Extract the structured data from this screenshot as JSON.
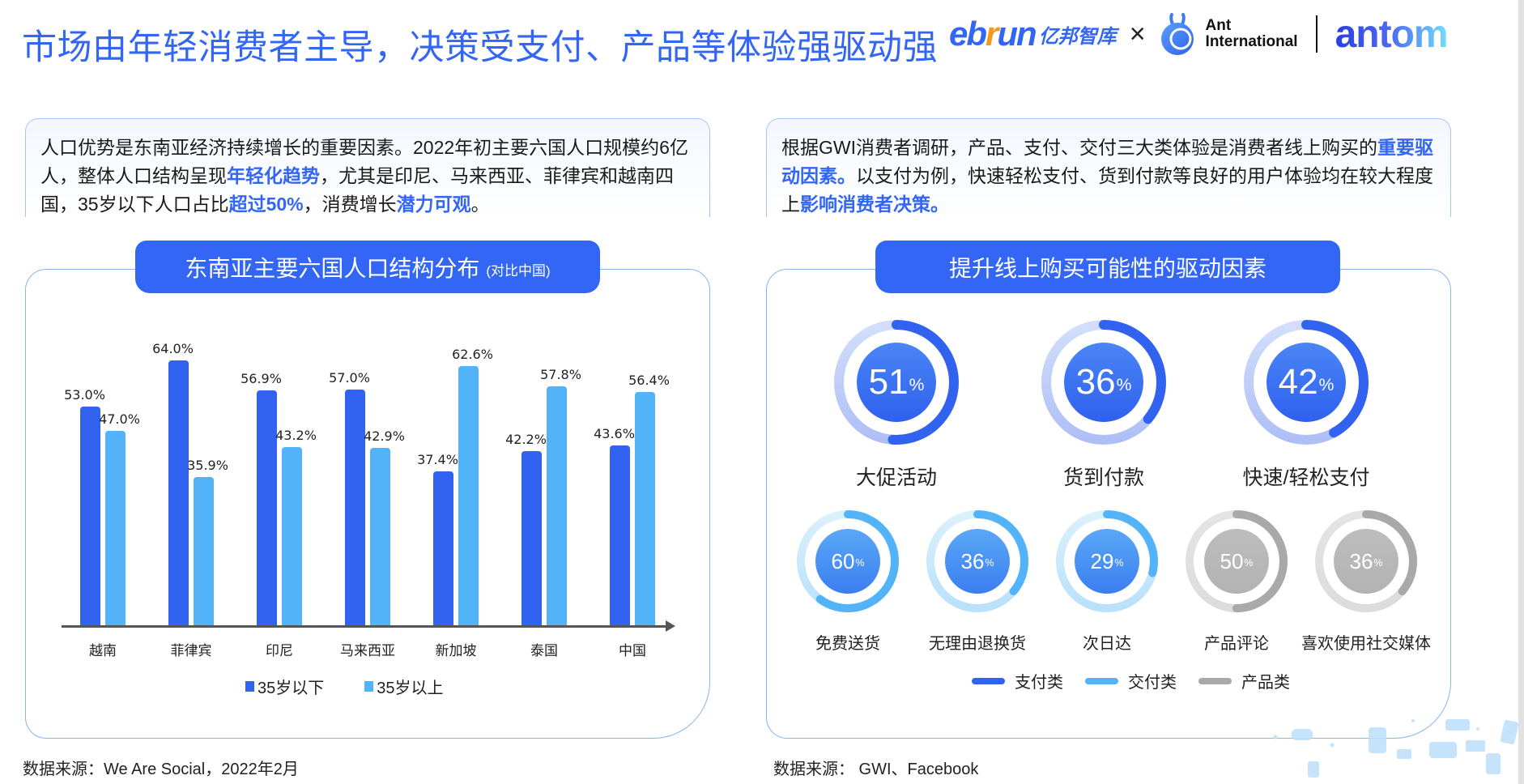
{
  "header": {
    "title": "市场由年轻消费者主导，决策受支付、产品等体验强驱动强",
    "logos": {
      "ebrun_prefix": "eb",
      "ebrun_r": "r",
      "ebrun_suffix": "un",
      "ebrun_cn": "亿邦智库",
      "separator": "×",
      "ant_line1": "Ant",
      "ant_line2": "International",
      "antom": "antom"
    }
  },
  "left_text": {
    "segments": [
      {
        "text": "人口优势是东南亚经济持续增长的重要因素。2022年初主要六国人口规模约6亿人，整体人口结构呈现",
        "hl": false
      },
      {
        "text": "年轻化趋势",
        "hl": true
      },
      {
        "text": "，尤其是印尼、马来西亚、菲律宾和越南四国，35岁以下人口占比",
        "hl": false
      },
      {
        "text": "超过50%",
        "hl": true
      },
      {
        "text": "，消费增长",
        "hl": false
      },
      {
        "text": "潜力可观",
        "hl": true
      },
      {
        "text": "。",
        "hl": false
      }
    ]
  },
  "right_text": {
    "segments": [
      {
        "text": "根据GWI消费者调研，产品、支付、交付三大类体验是消费者线上购买的",
        "hl": false
      },
      {
        "text": "重要驱动因素。",
        "hl": true
      },
      {
        "text": "以支付为例，快速轻松支付、货到付款等良好的用户体验均在较大程度上",
        "hl": false
      },
      {
        "text": "影响消费者决策。",
        "hl": true
      }
    ]
  },
  "left_panel": {
    "title": "东南亚主要六国人口结构分布",
    "subtitle": "(对比中国)",
    "source": "数据来源：We Are Social，2022年2月"
  },
  "right_panel": {
    "title": "提升线上购买可能性的驱动因素",
    "source": "数据来源： GWI、Facebook",
    "legend": [
      {
        "label": "支付类",
        "color": "#3263f0"
      },
      {
        "label": "交付类",
        "color": "#52b3f8"
      },
      {
        "label": "产品类",
        "color": "#a9a9a9"
      }
    ]
  },
  "colors": {
    "accent": "#3366f5",
    "bar_under35": "#3263f0",
    "bar_over35": "#52b3f8",
    "payment": "#3263f0",
    "delivery": "#52b3f8",
    "product": "#a9a9a9",
    "panel_border": "#8ab4f0"
  },
  "chart_data": [
    {
      "type": "bar",
      "title": "东南亚主要六国人口结构分布 (对比中国)",
      "xlabel": "",
      "ylabel": "",
      "categories": [
        "越南",
        "菲律宾",
        "印尼",
        "马来西亚",
        "新加坡",
        "泰国",
        "中国"
      ],
      "series": [
        {
          "name": "35岁以下",
          "color": "#3263f0",
          "values": [
            53.0,
            64.0,
            56.9,
            57.0,
            37.4,
            42.2,
            43.6
          ]
        },
        {
          "name": "35岁以上",
          "color": "#52b3f8",
          "values": [
            47.0,
            35.9,
            43.2,
            42.9,
            62.6,
            57.8,
            56.4
          ]
        }
      ],
      "value_format": "percent_1dp",
      "ylim": [
        0,
        70
      ],
      "grid": false,
      "legend_position": "bottom"
    },
    {
      "type": "pie",
      "subtype": "donut-progress",
      "title": "提升线上购买可能性的驱动因素",
      "items": [
        {
          "label": "大促活动",
          "value": 51,
          "category": "支付类"
        },
        {
          "label": "货到付款",
          "value": 36,
          "category": "支付类"
        },
        {
          "label": "快速/轻松支付",
          "value": 42,
          "category": "支付类"
        },
        {
          "label": "免费送货",
          "value": 60,
          "category": "交付类"
        },
        {
          "label": "无理由退换货",
          "value": 36,
          "category": "交付类"
        },
        {
          "label": "次日达",
          "value": 29,
          "category": "交付类"
        },
        {
          "label": "产品评论",
          "value": 50,
          "category": "产品类"
        },
        {
          "label": "喜欢使用社交媒体",
          "value": 36,
          "category": "产品类"
        }
      ],
      "unit": "%",
      "legend": [
        "支付类",
        "交付类",
        "产品类"
      ],
      "legend_position": "bottom"
    }
  ]
}
